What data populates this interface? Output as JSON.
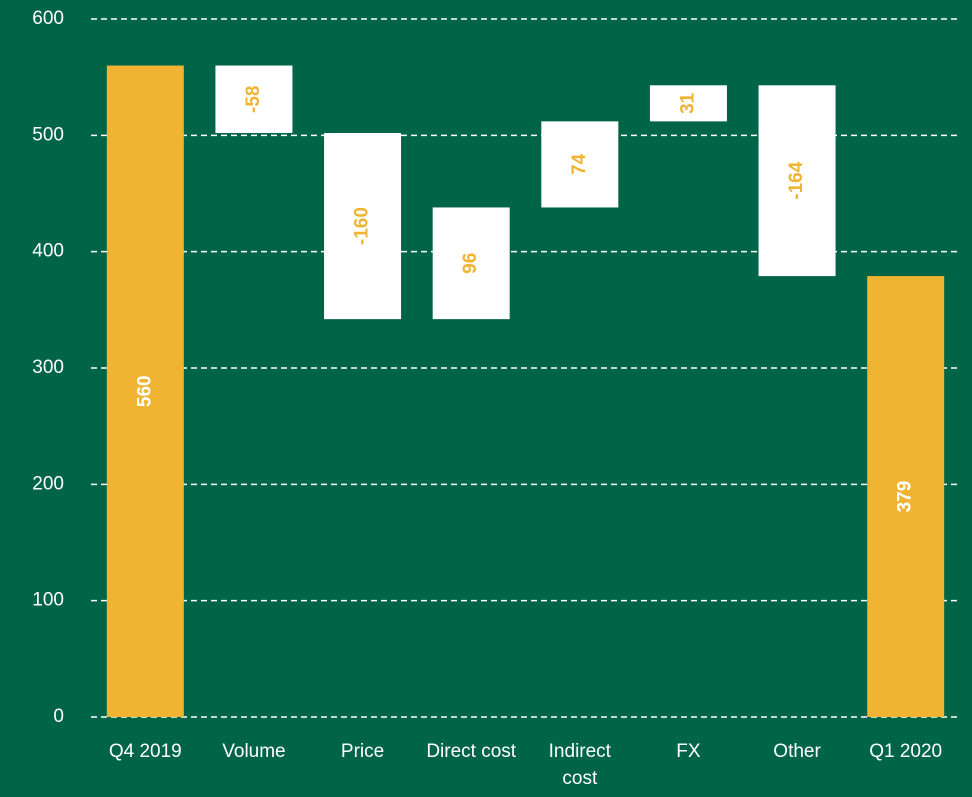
{
  "chart_data": {
    "type": "waterfall",
    "categories": [
      "Q4 2019",
      "Volume",
      "Price",
      "Direct cost",
      "Indirect cost",
      "FX",
      "Other",
      "Q1 2020"
    ],
    "values": [
      560,
      -58,
      -160,
      96,
      74,
      31,
      -164,
      379
    ],
    "is_total": [
      true,
      false,
      false,
      false,
      false,
      false,
      false,
      true
    ],
    "total_color": "#f0b432",
    "step_color": "#ffffff",
    "background": "#006446",
    "ylim": [
      0,
      600
    ],
    "yticks": [
      0,
      100,
      200,
      300,
      400,
      500,
      600
    ],
    "grid": true
  }
}
